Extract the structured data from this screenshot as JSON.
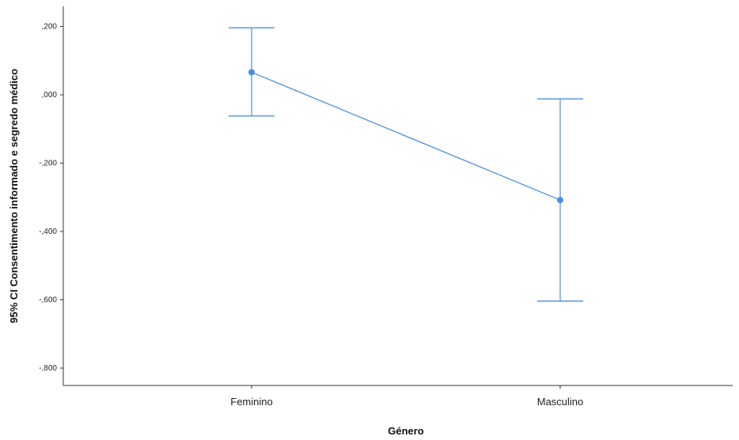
{
  "chart_data": {
    "type": "line",
    "title": "",
    "xlabel": "Género",
    "ylabel": "95% CI Consentimento informado e segredo médico",
    "categories": [
      "Feminino",
      "Masculino"
    ],
    "series": [
      {
        "mean": [
          0.066,
          -0.308
        ],
        "ci_upper": [
          0.196,
          -0.012
        ],
        "ci_lower": [
          -0.062,
          -0.604
        ]
      }
    ],
    "y_ticks": [
      0.2,
      0.0,
      -0.2,
      -0.4,
      -0.6,
      -0.8
    ],
    "y_tick_labels": [
      ",200",
      ",000",
      "-,200",
      "-,400",
      "-,600",
      "-,800"
    ],
    "ylim": [
      -0.85,
      0.26
    ],
    "grid": false,
    "colors": {
      "series": "#4a90e2",
      "axis": "#333333"
    }
  }
}
